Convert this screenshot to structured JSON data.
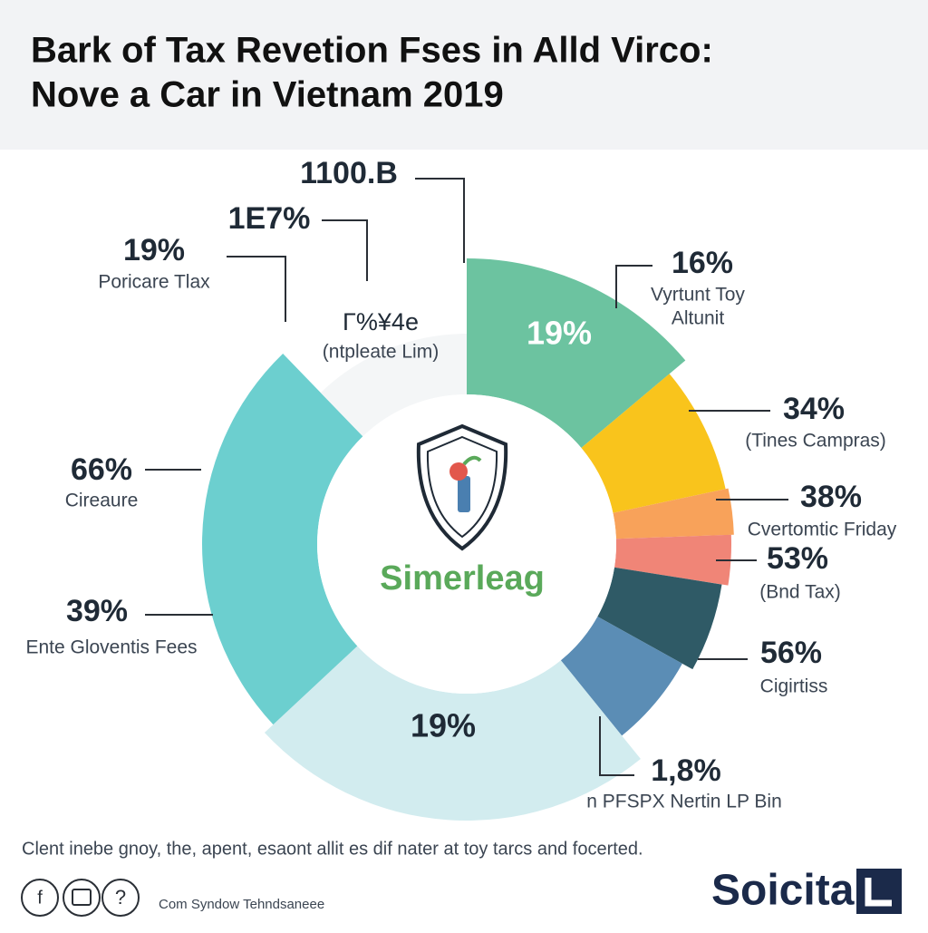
{
  "header": {
    "title": [
      "Bark of Tax Revetion Fses in Alld Virco:",
      "Nove a Car in Vietnam 2019"
    ]
  },
  "chart": {
    "callouts": [
      {
        "value": "1100.B"
      },
      {
        "value": "1E7%"
      },
      {
        "value": "19%",
        "label": [
          "Poricare Tlax"
        ]
      },
      {
        "value": "16%",
        "label": [
          "Vyrtunt Toy",
          "Altunit"
        ]
      },
      {
        "value": "34%",
        "label": [
          "(Tines Campras)"
        ]
      },
      {
        "value": "38%",
        "label": [
          "Cvertomtic Friday"
        ]
      },
      {
        "value": "53%",
        "label": [
          "(Bnd Tax)"
        ]
      },
      {
        "value": "56%",
        "label": [
          "Cigirtiss"
        ]
      },
      {
        "value": "1,8%",
        "label": [
          "n PFSPX Nertin LP Bin"
        ]
      },
      {
        "value": "66%",
        "label": [
          "Cireaure"
        ]
      },
      {
        "value": "39%",
        "label": [
          "Ente Gloventis Fees"
        ]
      }
    ],
    "slice_labels": [
      "19%",
      "19%"
    ],
    "inner_note": {
      "top": "Γ%¥4e",
      "sub": "(ntpleate Lim)"
    },
    "center_brand": "Simerleag"
  },
  "footer": {
    "note": "Clent inebe gnoy, the, apent, esaont allit es dif nater at toy tarcs and focerted.",
    "icons": [
      "f",
      "?"
    ],
    "credit": "Com Syndow Tehndsaneee",
    "logo": "Soicita"
  }
}
